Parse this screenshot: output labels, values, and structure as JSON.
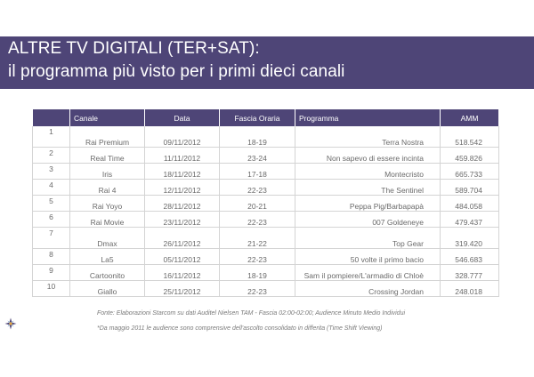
{
  "header": {
    "title_line1": "ALTRE TV DIGITALI (TER+SAT):",
    "title_line2": "il programma più visto per i primi dieci canali"
  },
  "table": {
    "columns": [
      "",
      "Canale",
      "Data",
      "Fascia Oraria",
      "Programma",
      "AMM"
    ],
    "rows": [
      {
        "rank": "1",
        "canale": "Rai Premium",
        "data": "09/11/2012",
        "fascia": "18-19",
        "programma": "Terra Nostra",
        "amm": "518.542"
      },
      {
        "rank": "2",
        "canale": "Real Time",
        "data": "11/11/2012",
        "fascia": "23-24",
        "programma": "Non sapevo di essere incinta",
        "amm": "459.826"
      },
      {
        "rank": "3",
        "canale": "Iris",
        "data": "18/11/2012",
        "fascia": "17-18",
        "programma": "Montecristo",
        "amm": "665.733"
      },
      {
        "rank": "4",
        "canale": "Rai 4",
        "data": "12/11/2012",
        "fascia": "22-23",
        "programma": "The Sentinel",
        "amm": "589.704"
      },
      {
        "rank": "5",
        "canale": "Rai Yoyo",
        "data": "28/11/2012",
        "fascia": "20-21",
        "programma": "Peppa Pig/Barbapapà",
        "amm": "484.058"
      },
      {
        "rank": "6",
        "canale": "Rai Movie",
        "data": "23/11/2012",
        "fascia": "22-23",
        "programma": "007 Goldeneye",
        "amm": "479.437"
      },
      {
        "rank": "7",
        "canale": "Dmax",
        "data": "26/11/2012",
        "fascia": "21-22",
        "programma": "Top Gear",
        "amm": "319.420"
      },
      {
        "rank": "8",
        "canale": "La5",
        "data": "05/11/2012",
        "fascia": "22-23",
        "programma": "50 volte il primo bacio",
        "amm": "546.683"
      },
      {
        "rank": "9",
        "canale": "Cartoonito",
        "data": "16/11/2012",
        "fascia": "18-19",
        "programma": "Sam il pompiere/L'armadio di Chloè",
        "amm": "328.777"
      },
      {
        "rank": "10",
        "canale": "Giallo",
        "data": "25/11/2012",
        "fascia": "22-23",
        "programma": "Crossing Jordan",
        "amm": "248.018"
      }
    ]
  },
  "footnotes": {
    "source": "Fonte: Elaborazioni Starcom su dati Auditel Nielsen TAM  - Fascia 02:00-02:00; Audience Minuto Medio Individui",
    "note": "*Da maggio 2011 le audience sono comprensive dell'ascolto consolidato in differita (Time Shift Viewing)"
  },
  "colors": {
    "accent": "#4e4577",
    "grid": "#d4d4d4"
  },
  "icons": {
    "logo": "starburst-logo-icon"
  }
}
